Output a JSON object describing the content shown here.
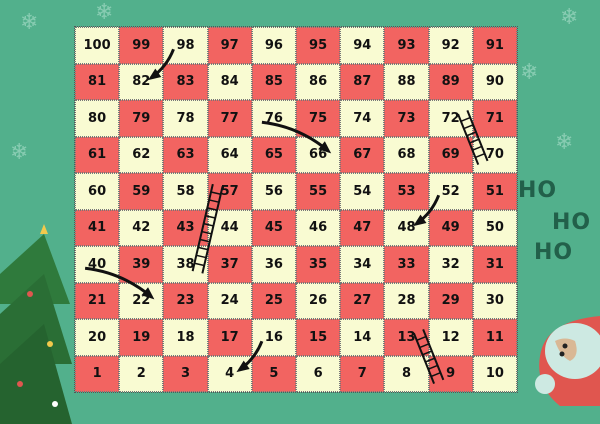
{
  "board": {
    "rows": [
      [
        100,
        99,
        98,
        97,
        96,
        95,
        94,
        93,
        92,
        91
      ],
      [
        81,
        82,
        83,
        84,
        85,
        86,
        87,
        88,
        89,
        90
      ],
      [
        80,
        79,
        78,
        77,
        76,
        75,
        74,
        73,
        72,
        71
      ],
      [
        61,
        62,
        63,
        64,
        65,
        66,
        67,
        68,
        69,
        70
      ],
      [
        60,
        59,
        58,
        57,
        56,
        55,
        54,
        53,
        52,
        51
      ],
      [
        41,
        42,
        43,
        44,
        45,
        46,
        47,
        48,
        49,
        50
      ],
      [
        40,
        39,
        38,
        37,
        36,
        35,
        34,
        33,
        32,
        31
      ],
      [
        21,
        22,
        23,
        24,
        25,
        26,
        27,
        28,
        29,
        30
      ],
      [
        20,
        19,
        18,
        17,
        16,
        15,
        14,
        13,
        12,
        11
      ],
      [
        1,
        2,
        3,
        4,
        5,
        6,
        7,
        8,
        9,
        10
      ]
    ],
    "colors": {
      "light": "#f9fbd2",
      "dark": "#f26461",
      "background": "#52b08c"
    }
  },
  "slides": [
    {
      "from": 98,
      "to": 82
    },
    {
      "from": 76,
      "to": 66
    },
    {
      "from": 52,
      "to": 48
    },
    {
      "from": 40,
      "to": 22
    },
    {
      "from": 16,
      "to": 4
    }
  ],
  "ladders": [
    {
      "from": 70,
      "to": 72
    },
    {
      "from": 38,
      "to": 57
    },
    {
      "from": 9,
      "to": 13
    }
  ],
  "decor": {
    "ho": [
      "HO",
      "HO",
      "HO"
    ],
    "icons": [
      "santa-icon",
      "christmas-tree-icon",
      "snowflake-icon"
    ]
  }
}
